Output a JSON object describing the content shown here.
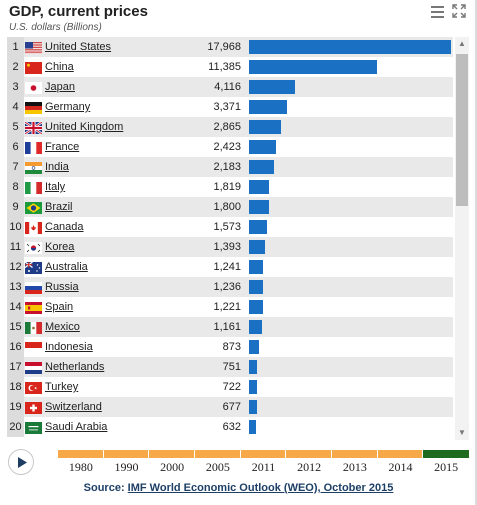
{
  "header": {
    "title": "GDP, current prices",
    "subtitle": "U.S. dollars (Billions)"
  },
  "icons": {
    "menu": "hamburger-menu-icon",
    "expand": "expand-arrows-icon",
    "play": "play-icon"
  },
  "colors": {
    "bar": "#1a71c4",
    "timeline": "#f7a94a",
    "timeline_active": "#1e6a1e"
  },
  "chart_data": {
    "type": "bar",
    "orientation": "horizontal",
    "title": "GDP, current prices",
    "subtitle": "U.S. dollars (Billions)",
    "categories": [
      "United States",
      "China",
      "Japan",
      "Germany",
      "United Kingdom",
      "France",
      "India",
      "Italy",
      "Brazil",
      "Canada",
      "Korea",
      "Australia",
      "Russia",
      "Spain",
      "Mexico",
      "Indonesia",
      "Netherlands",
      "Turkey",
      "Switzerland",
      "Saudi Arabia"
    ],
    "ranks": [
      "1",
      "2",
      "3",
      "4",
      "5",
      "6",
      "7",
      "8",
      "9",
      "10",
      "11",
      "12",
      "13",
      "14",
      "15",
      "16",
      "17",
      "18",
      "19",
      "20"
    ],
    "labels": [
      "17,968",
      "11,385",
      "4,116",
      "3,371",
      "2,865",
      "2,423",
      "2,183",
      "1,819",
      "1,800",
      "1,573",
      "1,393",
      "1,241",
      "1,236",
      "1,221",
      "1,161",
      "873",
      "751",
      "722",
      "677",
      "632"
    ],
    "values": [
      17968,
      11385,
      4116,
      3371,
      2865,
      2423,
      2183,
      1819,
      1800,
      1573,
      1393,
      1241,
      1236,
      1221,
      1161,
      873,
      751,
      722,
      677,
      632
    ],
    "xlim": [
      0,
      17968
    ]
  },
  "timeline": {
    "years": [
      "1980",
      "1990",
      "2000",
      "2005",
      "2011",
      "2012",
      "2013",
      "2014",
      "2015"
    ],
    "selected": "2015"
  },
  "source": {
    "prefix": "Source: ",
    "link": "IMF World Economic Outlook (WEO), October 2015"
  }
}
